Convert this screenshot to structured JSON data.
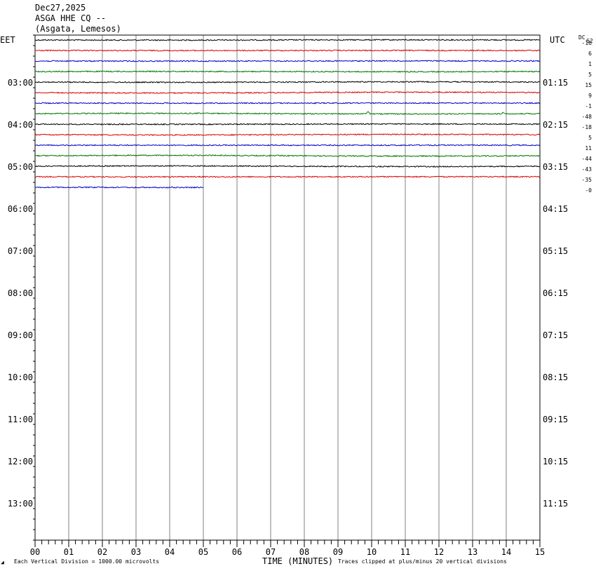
{
  "header": {
    "date": "Dec27,2025",
    "station": "ASGA HHE CQ --",
    "location": "(Asgata, Lemesos)"
  },
  "left_zone_label": "EET",
  "right_zone_label": "UTC",
  "dc_header": "DC",
  "dc_header_sub": "62",
  "footer": {
    "corner_mark": "◢",
    "scale_note": "Each Vertical Division = 1000.00 microvolts",
    "xlabel": "TIME (MINUTES)",
    "clip_note": "Traces clipped at plus/minus 20 vertical divisions"
  },
  "colors": {
    "trace_cycle": [
      "#000000",
      "#dd0000",
      "#0000cc",
      "#007700"
    ],
    "grid": "#808080",
    "frame": "#000000"
  },
  "chart_data": {
    "type": "line",
    "title": "ASGA HHE CQ --",
    "xlabel": "TIME (MINUTES)",
    "xlim": [
      0,
      15
    ],
    "x_ticks": [
      "00",
      "01",
      "02",
      "03",
      "04",
      "05",
      "06",
      "07",
      "08",
      "09",
      "10",
      "11",
      "12",
      "13",
      "14",
      "15"
    ],
    "row_interval_minutes": 15,
    "grid": true,
    "left_hour_labels": [
      "03:00",
      "04:00",
      "05:00",
      "06:00",
      "07:00",
      "08:00",
      "09:00",
      "10:00",
      "11:00",
      "12:00",
      "13:00"
    ],
    "right_hour_labels": [
      "01:15",
      "02:15",
      "03:15",
      "04:15",
      "05:15",
      "06:15",
      "07:15",
      "08:15",
      "09:15",
      "10:15",
      "11:15"
    ],
    "dc_offsets": [
      "-16",
      "6",
      "1",
      "5",
      "15",
      "9",
      "-1",
      "-48",
      "-18",
      "5",
      "11",
      "-44",
      "-43",
      "-35",
      "-0"
    ],
    "trace_end_minutes": [
      15,
      15,
      15,
      15,
      15,
      15,
      15,
      15,
      15,
      15,
      15,
      15,
      15,
      15,
      5
    ],
    "events": [
      {
        "row": 7,
        "minute": 9.9,
        "amplitude": 4
      },
      {
        "row": 7,
        "minute": 13.9,
        "amplitude": 2
      }
    ]
  }
}
